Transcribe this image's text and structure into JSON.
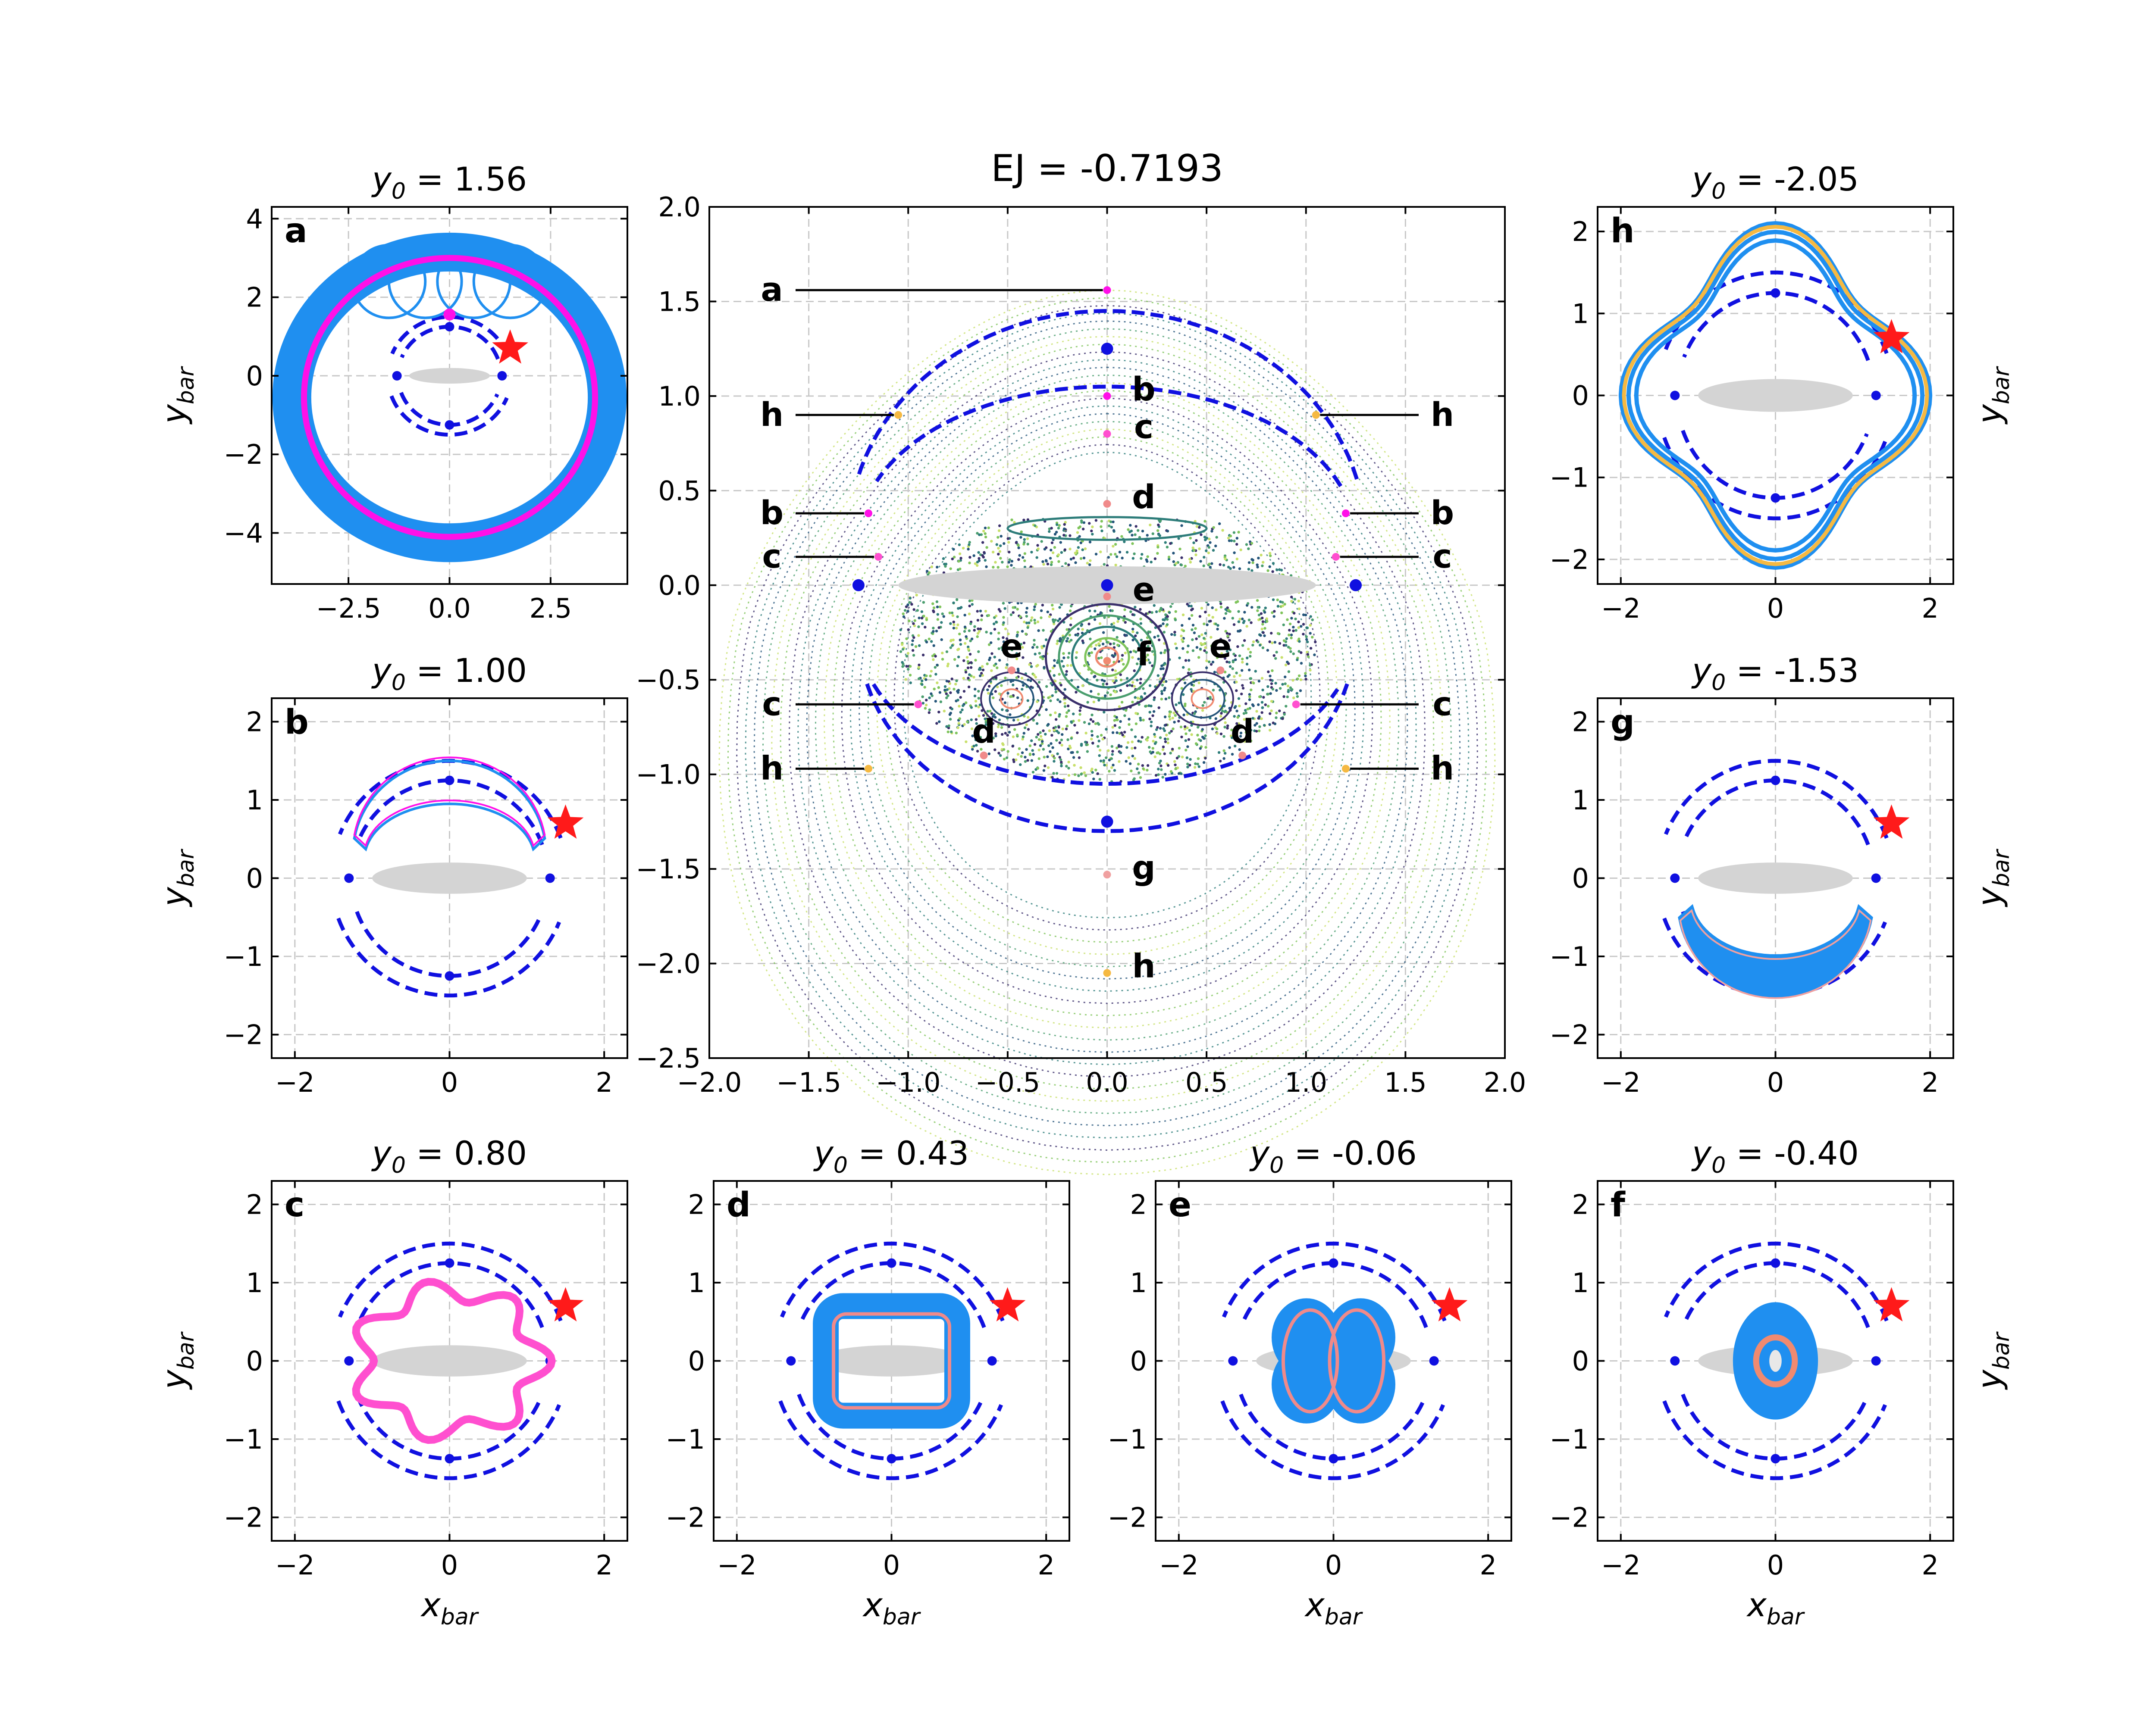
{
  "chart_data": {
    "type": "scatter",
    "main": {
      "title": "EJ = -0.7193",
      "xlim": [
        -2.0,
        2.0
      ],
      "ylim": [
        -2.5,
        2.0
      ],
      "xticks": [
        "−2.0",
        "−1.5",
        "−1.0",
        "−0.5",
        "0.0",
        "0.5",
        "1.0",
        "1.5",
        "2.0"
      ],
      "yticks": [
        "−2.5",
        "−2.0",
        "−1.5",
        "−1.0",
        "−0.5",
        "0.0",
        "0.5",
        "1.0",
        "1.5",
        "2.0"
      ],
      "grid": true,
      "annotations": [
        {
          "label": "a",
          "x": 0.0,
          "y": 1.56,
          "side": "left"
        },
        {
          "label": "b",
          "x": 0.0,
          "y": 1.0,
          "side": "none"
        },
        {
          "label": "c",
          "x": 0.0,
          "y": 0.8,
          "side": "none"
        },
        {
          "label": "d",
          "x": 0.0,
          "y": 0.43,
          "side": "none"
        },
        {
          "label": "e",
          "x": 0.0,
          "y": -0.06,
          "side": "none"
        },
        {
          "label": "f",
          "x": 0.0,
          "y": -0.4,
          "side": "none"
        },
        {
          "label": "g",
          "x": 0.0,
          "y": -1.53,
          "side": "none"
        },
        {
          "label": "h",
          "x": 0.0,
          "y": -2.05,
          "side": "none"
        },
        {
          "label": "h",
          "x": -1.05,
          "y": 0.9,
          "side": "left"
        },
        {
          "label": "h",
          "x": 1.05,
          "y": 0.9,
          "side": "right"
        },
        {
          "label": "b",
          "x": -1.2,
          "y": 0.38,
          "side": "left"
        },
        {
          "label": "b",
          "x": 1.2,
          "y": 0.38,
          "side": "right"
        },
        {
          "label": "c",
          "x": -1.15,
          "y": 0.15,
          "side": "left"
        },
        {
          "label": "c",
          "x": 1.15,
          "y": 0.15,
          "side": "right"
        },
        {
          "label": "c",
          "x": -0.95,
          "y": -0.63,
          "side": "left"
        },
        {
          "label": "c",
          "x": 0.95,
          "y": -0.63,
          "side": "right"
        },
        {
          "label": "h",
          "x": -1.2,
          "y": -0.97,
          "side": "left"
        },
        {
          "label": "h",
          "x": 1.2,
          "y": -0.97,
          "side": "right"
        },
        {
          "label": "e",
          "x": -0.48,
          "y": -0.45,
          "side": "none"
        },
        {
          "label": "e",
          "x": 0.57,
          "y": -0.45,
          "side": "none"
        },
        {
          "label": "d",
          "x": -0.62,
          "y": -0.9,
          "side": "none"
        },
        {
          "label": "d",
          "x": 0.68,
          "y": -0.9,
          "side": "none"
        }
      ],
      "lagrange_points": [
        [
          0,
          1.25
        ],
        [
          0,
          -1.25
        ],
        [
          -1.25,
          0
        ],
        [
          1.25,
          0
        ],
        [
          0,
          0
        ]
      ]
    },
    "panels": [
      {
        "label": "a",
        "title_prefix": "y",
        "title_sub": "0",
        "title_value": " = 1.56",
        "xlim": [
          -4.4,
          4.4
        ],
        "ylim": [
          -5.3,
          4.3
        ],
        "xticks": [
          "−2.5",
          "0.0",
          "2.5"
        ],
        "xtick_vals": [
          -2.5,
          0,
          2.5
        ],
        "yticks": [
          "−4",
          "−2",
          "0",
          "2",
          "4"
        ],
        "ytick_vals": [
          -4,
          -2,
          0,
          2,
          4
        ],
        "ylabel": "y",
        "ylabel_sub": "bar",
        "ylabel_side": "left",
        "xlabel": "",
        "orbit_color": "#1f8ff0",
        "highlight_color": "#ff10e8",
        "star": [
          1.5,
          0.7
        ]
      },
      {
        "label": "b",
        "title_prefix": "y",
        "title_sub": "0",
        "title_value": " = 1.00",
        "xlim": [
          -2.3,
          2.3
        ],
        "ylim": [
          -2.3,
          2.3
        ],
        "xticks": [
          "−2",
          "0",
          "2"
        ],
        "xtick_vals": [
          -2,
          0,
          2
        ],
        "yticks": [
          "−2",
          "−1",
          "0",
          "1",
          "2"
        ],
        "ytick_vals": [
          -2,
          -1,
          0,
          1,
          2
        ],
        "ylabel": "y",
        "ylabel_sub": "bar",
        "ylabel_side": "left",
        "xlabel": "",
        "orbit_color": "#1f8ff0",
        "highlight_color": "#ff10e8",
        "star": [
          1.5,
          0.7
        ]
      },
      {
        "label": "c",
        "title_prefix": "y",
        "title_sub": "0",
        "title_value": " = 0.80",
        "xlim": [
          -2.3,
          2.3
        ],
        "ylim": [
          -2.3,
          2.3
        ],
        "xticks": [
          "−2",
          "0",
          "2"
        ],
        "xtick_vals": [
          -2,
          0,
          2
        ],
        "yticks": [
          "−2",
          "−1",
          "0",
          "1",
          "2"
        ],
        "ytick_vals": [
          -2,
          -1,
          0,
          1,
          2
        ],
        "ylabel": "y",
        "ylabel_sub": "bar",
        "ylabel_side": "left",
        "xlabel": "x",
        "xlabel_sub": "bar",
        "orbit_color": "#1f8ff0",
        "highlight_color": "#ff4fcf",
        "star": [
          1.5,
          0.7
        ]
      },
      {
        "label": "d",
        "title_prefix": "y",
        "title_sub": "0",
        "title_value": " = 0.43",
        "xlim": [
          -2.3,
          2.3
        ],
        "ylim": [
          -2.3,
          2.3
        ],
        "xticks": [
          "−2",
          "0",
          "2"
        ],
        "xtick_vals": [
          -2,
          0,
          2
        ],
        "yticks": [
          "−2",
          "−1",
          "0",
          "1",
          "2"
        ],
        "ytick_vals": [
          -2,
          -1,
          0,
          1,
          2
        ],
        "ylabel": "",
        "ylabel_side": "none",
        "xlabel": "x",
        "xlabel_sub": "bar",
        "orbit_color": "#1f8ff0",
        "highlight_color": "#f08a8a",
        "star": [
          1.5,
          0.7
        ]
      },
      {
        "label": "e",
        "title_prefix": "y",
        "title_sub": "0",
        "title_value": " = -0.06",
        "xlim": [
          -2.3,
          2.3
        ],
        "ylim": [
          -2.3,
          2.3
        ],
        "xticks": [
          "−2",
          "0",
          "2"
        ],
        "xtick_vals": [
          -2,
          0,
          2
        ],
        "yticks": [
          "−2",
          "−1",
          "0",
          "1",
          "2"
        ],
        "ytick_vals": [
          -2,
          -1,
          0,
          1,
          2
        ],
        "ylabel": "",
        "ylabel_side": "none",
        "xlabel": "x",
        "xlabel_sub": "bar",
        "orbit_color": "#1f8ff0",
        "highlight_color": "#f08a8a",
        "star": [
          1.5,
          0.7
        ]
      },
      {
        "label": "f",
        "title_prefix": "y",
        "title_sub": "0",
        "title_value": " = -0.40",
        "xlim": [
          -2.3,
          2.3
        ],
        "ylim": [
          -2.3,
          2.3
        ],
        "xticks": [
          "−2",
          "0",
          "2"
        ],
        "xtick_vals": [
          -2,
          0,
          2
        ],
        "yticks": [
          "−2",
          "−1",
          "0",
          "1",
          "2"
        ],
        "ytick_vals": [
          -2,
          -1,
          0,
          1,
          2
        ],
        "ylabel": "y",
        "ylabel_sub": "bar",
        "ylabel_side": "right",
        "xlabel": "x",
        "xlabel_sub": "bar",
        "orbit_color": "#1f8ff0",
        "highlight_color": "#f08a70",
        "star": [
          1.5,
          0.7
        ]
      },
      {
        "label": "g",
        "title_prefix": "y",
        "title_sub": "0",
        "title_value": " = -1.53",
        "xlim": [
          -2.3,
          2.3
        ],
        "ylim": [
          -2.3,
          2.3
        ],
        "xticks": [
          "−2",
          "0",
          "2"
        ],
        "xtick_vals": [
          -2,
          0,
          2
        ],
        "yticks": [
          "−2",
          "−1",
          "0",
          "1",
          "2"
        ],
        "ytick_vals": [
          -2,
          -1,
          0,
          1,
          2
        ],
        "ylabel": "y",
        "ylabel_sub": "bar",
        "ylabel_side": "right",
        "xlabel": "",
        "orbit_color": "#1f8ff0",
        "highlight_color": "#f0a0a0",
        "star": [
          1.5,
          0.7
        ]
      },
      {
        "label": "h",
        "title_prefix": "y",
        "title_sub": "0",
        "title_value": " = -2.05",
        "xlim": [
          -2.3,
          2.3
        ],
        "ylim": [
          -2.3,
          2.3
        ],
        "xticks": [
          "−2",
          "0",
          "2"
        ],
        "xtick_vals": [
          -2,
          0,
          2
        ],
        "yticks": [
          "−2",
          "−1",
          "0",
          "1",
          "2"
        ],
        "ytick_vals": [
          -2,
          -1,
          0,
          1,
          2
        ],
        "ylabel": "y",
        "ylabel_sub": "bar",
        "ylabel_side": "right",
        "xlabel": "",
        "orbit_color": "#1f8ff0",
        "highlight_color": "#f5b942",
        "star": [
          1.5,
          0.7
        ]
      }
    ],
    "colors": {
      "orbit": "#1f8ff0",
      "separatrix": "#1010e0",
      "bar": "#d4d4d4",
      "star": "#ff1a1a",
      "lagrange": "#1010e0",
      "grid": "#c8c8c8"
    }
  }
}
